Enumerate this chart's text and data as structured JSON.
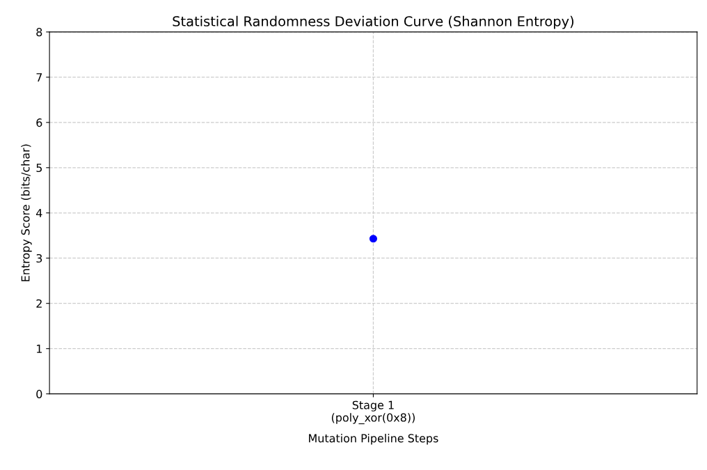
{
  "chart_data": {
    "type": "line",
    "title": "Statistical Randomness Deviation Curve (Shannon Entropy)",
    "xlabel": "Mutation Pipeline Steps",
    "ylabel": "Entropy Score (bits/char)",
    "categories": [
      "Stage 1\n(poly_xor(0x8))"
    ],
    "series": [
      {
        "color": "#0000ff",
        "values": [
          3.43
        ]
      }
    ],
    "ylim": [
      0,
      8
    ],
    "yticks": [
      0,
      1,
      2,
      3,
      4,
      5,
      6,
      7,
      8
    ],
    "grid": true,
    "marker": "circle"
  }
}
